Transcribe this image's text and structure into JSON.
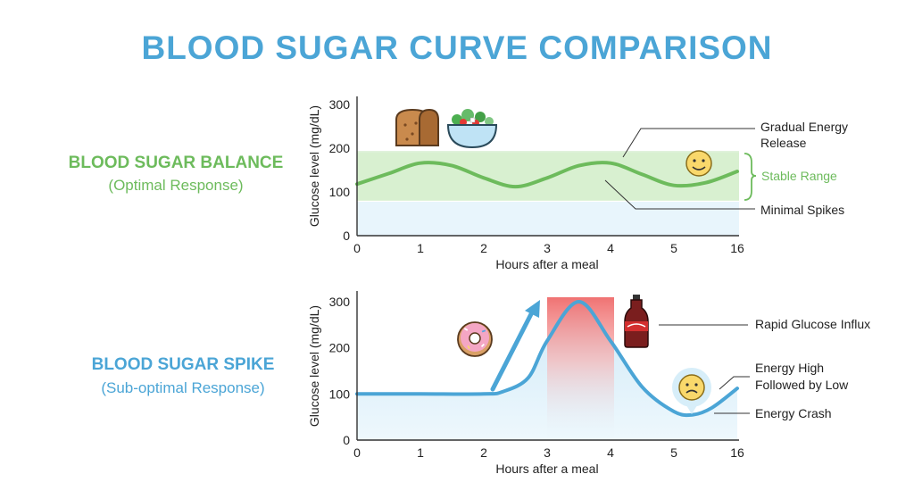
{
  "title": "BLOOD SUGAR CURVE COMPARISON",
  "colors": {
    "title": "#4ba5d6",
    "green": "#6dbb5c",
    "green_band": "#d8f0d0",
    "blue": "#4ba5d6",
    "blue_fill": "#e3f3fb",
    "peak_red": "#ef6b6b"
  },
  "panels": [
    {
      "heading": "BLOOD SUGAR BALANCE",
      "subheading": "(Optimal Response)",
      "annotations": {
        "gradual": [
          "Gradual Energy",
          "Release"
        ],
        "stable": "Stable Range",
        "minimal": "Minimal Spikes"
      },
      "icons": [
        "bread-icon",
        "salad-bowl-icon",
        "smiley-face-icon"
      ]
    },
    {
      "heading": "BLOOD SUGAR SPIKE",
      "subheading": "(Sub-optimal Response)",
      "annotations": {
        "influx": "Rapid Glucose Influx",
        "high_low": [
          "Energy High",
          "Followed by Low"
        ],
        "crash": "Energy Crash"
      },
      "icons": [
        "donut-icon",
        "soda-bottle-icon",
        "sad-face-icon",
        "up-arrow-icon"
      ]
    }
  ],
  "chart_data": [
    {
      "type": "line",
      "title": "",
      "xlabel": "Hours after a meal",
      "ylabel": "Glucose level (mg/dL)",
      "x_tick_labels": [
        "0",
        "1",
        "2",
        "3",
        "4",
        "5",
        "16"
      ],
      "y_ticks": [
        0,
        100,
        200,
        300
      ],
      "ylim": [
        0,
        300
      ],
      "bands": [
        {
          "name": "Stable Range",
          "from": 80,
          "to": 190
        }
      ],
      "grid": false,
      "series": [
        {
          "x": [
            0,
            0.5,
            1,
            1.5,
            2,
            2.5,
            3,
            3.5,
            4,
            4.5,
            5,
            5.5,
            6
          ],
          "y": [
            118,
            142,
            166,
            160,
            132,
            112,
            132,
            160,
            166,
            140,
            115,
            121,
            147
          ]
        }
      ]
    },
    {
      "type": "area",
      "title": "",
      "xlabel": "Hours after a meal",
      "ylabel": "Glucose level (mg/dL)",
      "x_tick_labels": [
        "0",
        "1",
        "2",
        "3",
        "4",
        "5",
        "16"
      ],
      "y_ticks": [
        0,
        100,
        200,
        300
      ],
      "ylim": [
        0,
        300
      ],
      "grid": false,
      "series": [
        {
          "x": [
            0,
            1,
            2,
            2.3,
            2.7,
            3,
            3.5,
            4,
            4.5,
            5,
            5.3,
            5.6,
            6
          ],
          "y": [
            100,
            100,
            100,
            105,
            135,
            215,
            300,
            215,
            115,
            62,
            55,
            70,
            112
          ]
        }
      ]
    }
  ]
}
